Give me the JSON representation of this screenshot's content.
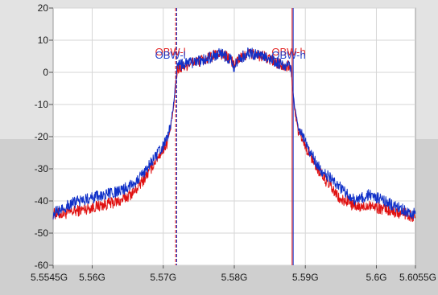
{
  "chart_data": {
    "type": "line",
    "title": "",
    "xlabel": "",
    "ylabel": "",
    "xlim": [
      5.5545,
      5.6055
    ],
    "ylim": [
      -60,
      20
    ],
    "grid": true,
    "legend": "none",
    "x_tick_labels": [
      "5.5545G",
      "5.56G",
      "5.57G",
      "5.58G",
      "5.59G",
      "5.6G",
      "5.6055G"
    ],
    "x_ticks": [
      5.5545,
      5.56,
      5.57,
      5.58,
      5.59,
      5.6,
      5.6055
    ],
    "y_tick_labels": [
      "20",
      "10",
      "0",
      "-10",
      "-20",
      "-30",
      "-40",
      "-50",
      "-60"
    ],
    "y_ticks": [
      20,
      10,
      0,
      -10,
      -20,
      -30,
      -40,
      -50,
      -60
    ],
    "series": [
      {
        "color": "#e01010",
        "x": [
          5.5545,
          5.556,
          5.558,
          5.56,
          5.562,
          5.564,
          5.566,
          5.567,
          5.568,
          5.569,
          5.57,
          5.5705,
          5.571,
          5.5715,
          5.5718,
          5.572,
          5.574,
          5.576,
          5.578,
          5.5795,
          5.58,
          5.5805,
          5.582,
          5.584,
          5.586,
          5.5875,
          5.588,
          5.5882,
          5.5885,
          5.589,
          5.5895,
          5.59,
          5.591,
          5.592,
          5.593,
          5.594,
          5.595,
          5.596,
          5.597,
          5.598,
          5.599,
          5.6,
          5.602,
          5.604,
          5.6055
        ],
        "y": [
          -44,
          -44,
          -43,
          -42,
          -41,
          -40,
          -37,
          -34,
          -31,
          -27,
          -24,
          -22,
          -18,
          -10,
          -3,
          1,
          3,
          4,
          6,
          4,
          2,
          4,
          6,
          5,
          3,
          2,
          1,
          -5,
          -12,
          -18,
          -20,
          -23,
          -27,
          -31,
          -34,
          -37,
          -40,
          -40,
          -42,
          -42,
          -41,
          -42,
          -43,
          -44,
          -45
        ]
      },
      {
        "color": "#1030c8",
        "x": [
          5.5545,
          5.556,
          5.558,
          5.56,
          5.562,
          5.564,
          5.566,
          5.567,
          5.568,
          5.569,
          5.57,
          5.5705,
          5.571,
          5.5715,
          5.5718,
          5.572,
          5.574,
          5.576,
          5.578,
          5.5795,
          5.58,
          5.5805,
          5.582,
          5.584,
          5.586,
          5.5875,
          5.588,
          5.5882,
          5.5885,
          5.589,
          5.5895,
          5.59,
          5.591,
          5.592,
          5.593,
          5.594,
          5.595,
          5.596,
          5.597,
          5.598,
          5.599,
          5.6,
          5.602,
          5.604,
          5.6055
        ],
        "y": [
          -44,
          -42,
          -40,
          -39,
          -38,
          -37,
          -34,
          -32,
          -29,
          -26,
          -23,
          -21,
          -17,
          -9,
          -2,
          2,
          3,
          4,
          6,
          4,
          1,
          4,
          6,
          5,
          3,
          2,
          1,
          -4,
          -11,
          -17,
          -19,
          -22,
          -26,
          -30,
          -32,
          -34,
          -36,
          -38,
          -40,
          -39,
          -38,
          -39,
          -41,
          -43,
          -44
        ]
      }
    ],
    "markers": [
      {
        "label": "OBW-l",
        "x": 5.5718,
        "colors": [
          "#e01010",
          "#1030c8"
        ]
      },
      {
        "label": "OBW-h",
        "x": 5.5882,
        "colors": [
          "#e01010",
          "#1030c8"
        ]
      }
    ]
  }
}
